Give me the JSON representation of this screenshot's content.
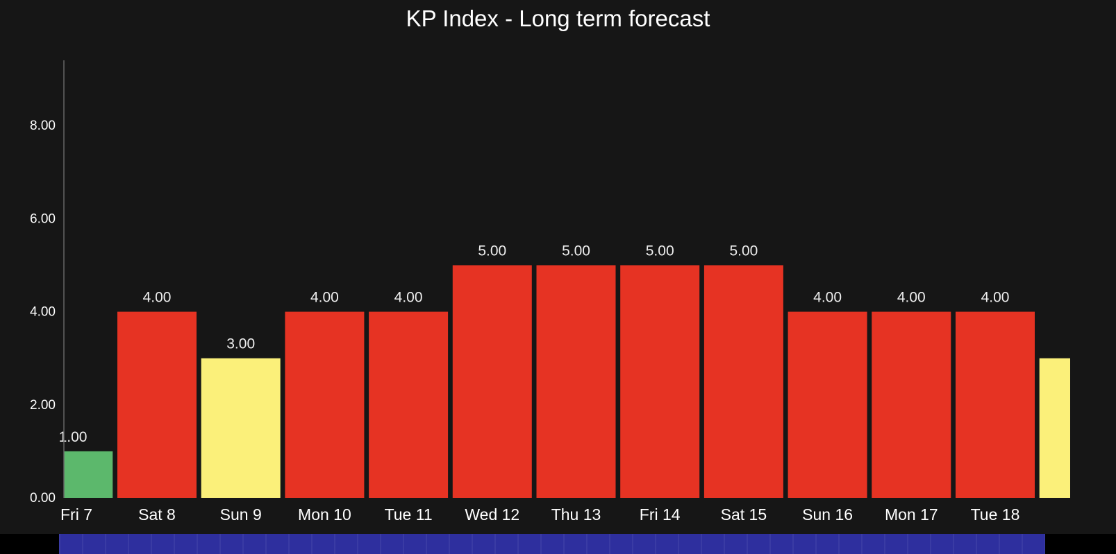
{
  "chart_data": {
    "type": "bar",
    "title": "KP Index - Long term forecast",
    "xlabel": "",
    "ylabel": "",
    "ylim": [
      0,
      9.4
    ],
    "yticks": [
      "0.00",
      "2.00",
      "4.00",
      "6.00",
      "8.00"
    ],
    "ytick_values": [
      0,
      2,
      4,
      6,
      8
    ],
    "grid": false,
    "categories": [
      "Fri 7",
      "Sat 8",
      "Sun 9",
      "Mon 10",
      "Tue 11",
      "Wed 12",
      "Thu 13",
      "Fri 14",
      "Sat 15",
      "Sun 16",
      "Mon 17",
      "Tue 18",
      ""
    ],
    "values": [
      1,
      4,
      3,
      4,
      4,
      5,
      5,
      5,
      5,
      4,
      4,
      4,
      3
    ],
    "value_labels": [
      "1.00",
      "4.00",
      "3.00",
      "4.00",
      "4.00",
      "5.00",
      "5.00",
      "5.00",
      "5.00",
      "4.00",
      "4.00",
      "4.00",
      ""
    ],
    "colors": {
      "low": "#5cb86c",
      "moderate": "#fbf07a",
      "high": "#e63323"
    }
  }
}
